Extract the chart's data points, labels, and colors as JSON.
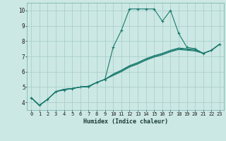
{
  "xlabel": "Humidex (Indice chaleur)",
  "bg_color": "#cce8e4",
  "grid_color": "#aacfcb",
  "line_color": "#1a7a6e",
  "xlim": [
    -0.5,
    23.5
  ],
  "ylim": [
    3.5,
    10.5
  ],
  "xticks": [
    0,
    1,
    2,
    3,
    4,
    5,
    6,
    7,
    8,
    9,
    10,
    11,
    12,
    13,
    14,
    15,
    16,
    17,
    18,
    19,
    20,
    21,
    22,
    23
  ],
  "yticks": [
    4,
    5,
    6,
    7,
    8,
    9,
    10
  ],
  "series": [
    [
      0,
      4.3
    ],
    [
      1,
      3.8
    ],
    [
      2,
      4.2
    ],
    [
      3,
      4.7
    ],
    [
      4,
      4.8
    ],
    [
      5,
      4.9
    ],
    [
      6,
      5.0
    ],
    [
      7,
      5.0
    ],
    [
      8,
      5.3
    ],
    [
      9,
      5.5
    ],
    [
      10,
      7.6
    ],
    [
      11,
      8.7
    ],
    [
      12,
      10.1
    ],
    [
      13,
      10.1
    ],
    [
      14,
      10.1
    ],
    [
      15,
      10.1
    ],
    [
      16,
      9.3
    ],
    [
      17,
      10.0
    ],
    [
      18,
      8.5
    ],
    [
      19,
      7.6
    ],
    [
      20,
      7.5
    ],
    [
      21,
      7.2
    ],
    [
      22,
      7.4
    ],
    [
      23,
      7.8
    ]
  ],
  "line2": [
    [
      0,
      4.3
    ],
    [
      1,
      3.8
    ],
    [
      2,
      4.2
    ],
    [
      3,
      4.7
    ],
    [
      4,
      4.85
    ],
    [
      5,
      4.9
    ],
    [
      6,
      5.0
    ],
    [
      7,
      5.05
    ],
    [
      8,
      5.3
    ],
    [
      9,
      5.5
    ],
    [
      10,
      5.85
    ],
    [
      11,
      6.1
    ],
    [
      12,
      6.4
    ],
    [
      13,
      6.6
    ],
    [
      14,
      6.85
    ],
    [
      15,
      7.05
    ],
    [
      16,
      7.2
    ],
    [
      17,
      7.4
    ],
    [
      18,
      7.55
    ],
    [
      19,
      7.5
    ],
    [
      20,
      7.45
    ],
    [
      21,
      7.2
    ],
    [
      22,
      7.4
    ],
    [
      23,
      7.8
    ]
  ],
  "line3": [
    [
      0,
      4.3
    ],
    [
      1,
      3.8
    ],
    [
      2,
      4.2
    ],
    [
      3,
      4.7
    ],
    [
      4,
      4.85
    ],
    [
      5,
      4.9
    ],
    [
      6,
      5.0
    ],
    [
      7,
      5.05
    ],
    [
      8,
      5.3
    ],
    [
      9,
      5.5
    ],
    [
      10,
      5.8
    ],
    [
      11,
      6.05
    ],
    [
      12,
      6.35
    ],
    [
      13,
      6.55
    ],
    [
      14,
      6.8
    ],
    [
      15,
      7.0
    ],
    [
      16,
      7.15
    ],
    [
      17,
      7.35
    ],
    [
      18,
      7.5
    ],
    [
      19,
      7.45
    ],
    [
      20,
      7.4
    ],
    [
      21,
      7.2
    ],
    [
      22,
      7.4
    ],
    [
      23,
      7.8
    ]
  ],
  "line4": [
    [
      0,
      4.3
    ],
    [
      1,
      3.8
    ],
    [
      2,
      4.2
    ],
    [
      3,
      4.7
    ],
    [
      4,
      4.85
    ],
    [
      5,
      4.9
    ],
    [
      6,
      5.0
    ],
    [
      7,
      5.05
    ],
    [
      8,
      5.3
    ],
    [
      9,
      5.5
    ],
    [
      10,
      5.75
    ],
    [
      11,
      6.0
    ],
    [
      12,
      6.3
    ],
    [
      13,
      6.5
    ],
    [
      14,
      6.75
    ],
    [
      15,
      6.95
    ],
    [
      16,
      7.1
    ],
    [
      17,
      7.3
    ],
    [
      18,
      7.45
    ],
    [
      19,
      7.4
    ],
    [
      20,
      7.35
    ],
    [
      21,
      7.2
    ],
    [
      22,
      7.4
    ],
    [
      23,
      7.8
    ]
  ]
}
